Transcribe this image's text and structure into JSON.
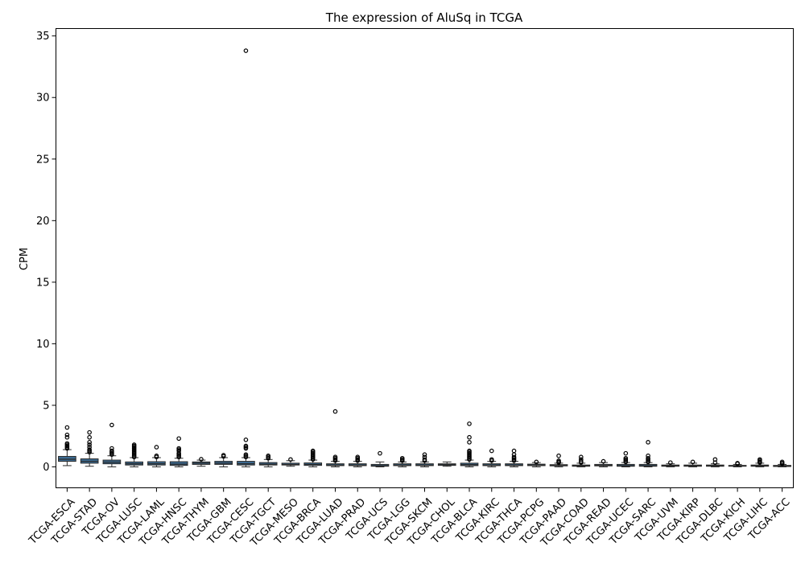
{
  "chart_data": {
    "type": "box",
    "title": "The expression of AluSq in TCGA",
    "xlabel": "",
    "ylabel": "CPM",
    "ylim": [
      -1.7,
      35.6
    ],
    "yticks": [
      0,
      5,
      10,
      15,
      20,
      25,
      30,
      35
    ],
    "box_color": "#3b6a91",
    "categories": [
      "TCGA-ESCA",
      "TCGA-STAD",
      "TCGA-OV",
      "TCGA-LUSC",
      "TCGA-LAML",
      "TCGA-HNSC",
      "TCGA-THYM",
      "TCGA-GBM",
      "TCGA-CESC",
      "TCGA-TGCT",
      "TCGA-MESO",
      "TCGA-BRCA",
      "TCGA-LUAD",
      "TCGA-PRAD",
      "TCGA-UCS",
      "TCGA-LGG",
      "TCGA-SKCM",
      "TCGA-CHOL",
      "TCGA-BLCA",
      "TCGA-KIRC",
      "TCGA-THCA",
      "TCGA-PCPG",
      "TCGA-PAAD",
      "TCGA-COAD",
      "TCGA-READ",
      "TCGA-UCEC",
      "TCGA-SARC",
      "TCGA-UVM",
      "TCGA-KIRP",
      "TCGA-DLBC",
      "TCGA-KICH",
      "TCGA-LIHC",
      "TCGA-ACC"
    ],
    "boxes": [
      {
        "min": 0.1,
        "q1": 0.45,
        "median": 0.62,
        "q3": 0.85,
        "max": 1.4,
        "fliers": [
          1.5,
          1.6,
          1.7,
          1.8,
          1.9,
          2.4,
          2.6,
          3.2
        ]
      },
      {
        "min": 0.05,
        "q1": 0.3,
        "median": 0.45,
        "q3": 0.65,
        "max": 1.1,
        "fliers": [
          1.2,
          1.3,
          1.4,
          1.6,
          1.8,
          2.0,
          2.4,
          2.8
        ]
      },
      {
        "min": 0.0,
        "q1": 0.25,
        "median": 0.38,
        "q3": 0.55,
        "max": 0.9,
        "fliers": [
          1.0,
          1.1,
          1.2,
          1.3,
          1.5,
          3.4
        ]
      },
      {
        "min": 0.0,
        "q1": 0.15,
        "median": 0.25,
        "q3": 0.4,
        "max": 0.75,
        "fliers": [
          0.8,
          0.9,
          1.0,
          1.1,
          1.2,
          1.3,
          1.4,
          1.5,
          1.6,
          1.7,
          1.8
        ]
      },
      {
        "min": 0.0,
        "q1": 0.15,
        "median": 0.25,
        "q3": 0.42,
        "max": 0.75,
        "fliers": [
          0.8,
          0.9,
          1.6
        ]
      },
      {
        "min": 0.0,
        "q1": 0.12,
        "median": 0.22,
        "q3": 0.42,
        "max": 0.7,
        "fliers": [
          0.8,
          0.9,
          1.0,
          1.1,
          1.3,
          1.4,
          1.5,
          2.3
        ]
      },
      {
        "min": 0.05,
        "q1": 0.2,
        "median": 0.3,
        "q3": 0.4,
        "max": 0.55,
        "fliers": [
          0.62
        ]
      },
      {
        "min": 0.0,
        "q1": 0.2,
        "median": 0.3,
        "q3": 0.45,
        "max": 0.75,
        "fliers": [
          0.85,
          0.95
        ]
      },
      {
        "min": 0.0,
        "q1": 0.15,
        "median": 0.25,
        "q3": 0.45,
        "max": 0.75,
        "fliers": [
          0.8,
          0.9,
          1.0,
          1.5,
          1.6,
          1.7,
          2.2,
          33.8
        ]
      },
      {
        "min": 0.0,
        "q1": 0.15,
        "median": 0.22,
        "q3": 0.35,
        "max": 0.6,
        "fliers": [
          0.7,
          0.8,
          0.9
        ]
      },
      {
        "min": 0.05,
        "q1": 0.15,
        "median": 0.2,
        "q3": 0.3,
        "max": 0.5,
        "fliers": [
          0.6
        ]
      },
      {
        "min": 0.0,
        "q1": 0.12,
        "median": 0.2,
        "q3": 0.32,
        "max": 0.55,
        "fliers": [
          0.6,
          0.7,
          0.8,
          0.9,
          1.0,
          1.1,
          1.2,
          1.3
        ]
      },
      {
        "min": 0.0,
        "q1": 0.1,
        "median": 0.15,
        "q3": 0.25,
        "max": 0.45,
        "fliers": [
          0.5,
          0.6,
          0.7,
          0.8,
          4.5
        ]
      },
      {
        "min": 0.0,
        "q1": 0.1,
        "median": 0.15,
        "q3": 0.25,
        "max": 0.45,
        "fliers": [
          0.5,
          0.6,
          0.7,
          0.8
        ]
      },
      {
        "min": 0.0,
        "q1": 0.05,
        "median": 0.1,
        "q3": 0.2,
        "max": 0.4,
        "fliers": [
          1.1
        ]
      },
      {
        "min": 0.0,
        "q1": 0.1,
        "median": 0.15,
        "q3": 0.25,
        "max": 0.4,
        "fliers": [
          0.5,
          0.6,
          0.7
        ]
      },
      {
        "min": 0.0,
        "q1": 0.1,
        "median": 0.15,
        "q3": 0.25,
        "max": 0.4,
        "fliers": [
          0.5,
          0.6,
          0.8,
          1.0
        ]
      },
      {
        "min": 0.05,
        "q1": 0.12,
        "median": 0.18,
        "q3": 0.25,
        "max": 0.4,
        "fliers": []
      },
      {
        "min": 0.0,
        "q1": 0.1,
        "median": 0.18,
        "q3": 0.3,
        "max": 0.55,
        "fliers": [
          0.6,
          0.7,
          0.8,
          0.9,
          1.0,
          1.1,
          1.2,
          1.3,
          2.0,
          2.4,
          3.5
        ]
      },
      {
        "min": 0.0,
        "q1": 0.1,
        "median": 0.15,
        "q3": 0.25,
        "max": 0.45,
        "fliers": [
          0.5,
          0.6,
          1.3
        ]
      },
      {
        "min": 0.0,
        "q1": 0.1,
        "median": 0.15,
        "q3": 0.25,
        "max": 0.45,
        "fliers": [
          0.5,
          0.6,
          0.7,
          0.8,
          1.0,
          1.3
        ]
      },
      {
        "min": 0.0,
        "q1": 0.1,
        "median": 0.15,
        "q3": 0.22,
        "max": 0.35,
        "fliers": [
          0.4
        ]
      },
      {
        "min": 0.0,
        "q1": 0.08,
        "median": 0.12,
        "q3": 0.18,
        "max": 0.3,
        "fliers": [
          0.35,
          0.4,
          0.5,
          0.9
        ]
      },
      {
        "min": 0.0,
        "q1": 0.05,
        "median": 0.1,
        "q3": 0.15,
        "max": 0.3,
        "fliers": [
          0.35,
          0.45,
          0.6,
          0.8
        ]
      },
      {
        "min": 0.0,
        "q1": 0.08,
        "median": 0.12,
        "q3": 0.2,
        "max": 0.35,
        "fliers": [
          0.45
        ]
      },
      {
        "min": 0.0,
        "q1": 0.05,
        "median": 0.1,
        "q3": 0.2,
        "max": 0.35,
        "fliers": [
          0.4,
          0.5,
          0.6,
          0.7,
          1.1
        ]
      },
      {
        "min": 0.0,
        "q1": 0.05,
        "median": 0.1,
        "q3": 0.2,
        "max": 0.35,
        "fliers": [
          0.4,
          0.5,
          0.6,
          0.7,
          0.9,
          2.0
        ]
      },
      {
        "min": 0.0,
        "q1": 0.05,
        "median": 0.1,
        "q3": 0.15,
        "max": 0.25,
        "fliers": [
          0.35
        ]
      },
      {
        "min": 0.0,
        "q1": 0.05,
        "median": 0.1,
        "q3": 0.15,
        "max": 0.3,
        "fliers": [
          0.4
        ]
      },
      {
        "min": 0.0,
        "q1": 0.05,
        "median": 0.1,
        "q3": 0.15,
        "max": 0.25,
        "fliers": [
          0.35,
          0.6
        ]
      },
      {
        "min": 0.0,
        "q1": 0.05,
        "median": 0.08,
        "q3": 0.12,
        "max": 0.2,
        "fliers": [
          0.25,
          0.3
        ]
      },
      {
        "min": 0.0,
        "q1": 0.05,
        "median": 0.1,
        "q3": 0.15,
        "max": 0.3,
        "fliers": [
          0.35,
          0.4,
          0.5,
          0.6
        ]
      },
      {
        "min": 0.0,
        "q1": 0.03,
        "median": 0.07,
        "q3": 0.12,
        "max": 0.2,
        "fliers": [
          0.25,
          0.3,
          0.4
        ]
      }
    ]
  }
}
